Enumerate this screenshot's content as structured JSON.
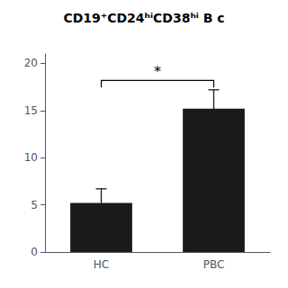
{
  "chart_data": {
    "type": "bar",
    "title": "CD19⁺CD24ʰⁱCD38ʰⁱ B c",
    "categories": [
      "HC",
      "PBC"
    ],
    "values": [
      5.2,
      15.2
    ],
    "errors": [
      1.5,
      2.0
    ],
    "color": "#1a1a1a",
    "ylim": [
      0,
      21
    ],
    "yticks": [
      0,
      5,
      10,
      15,
      20
    ],
    "grid": false,
    "annotations": [
      {
        "text": "*",
        "y": 18.2,
        "from": "HC",
        "to": "PBC"
      }
    ]
  }
}
